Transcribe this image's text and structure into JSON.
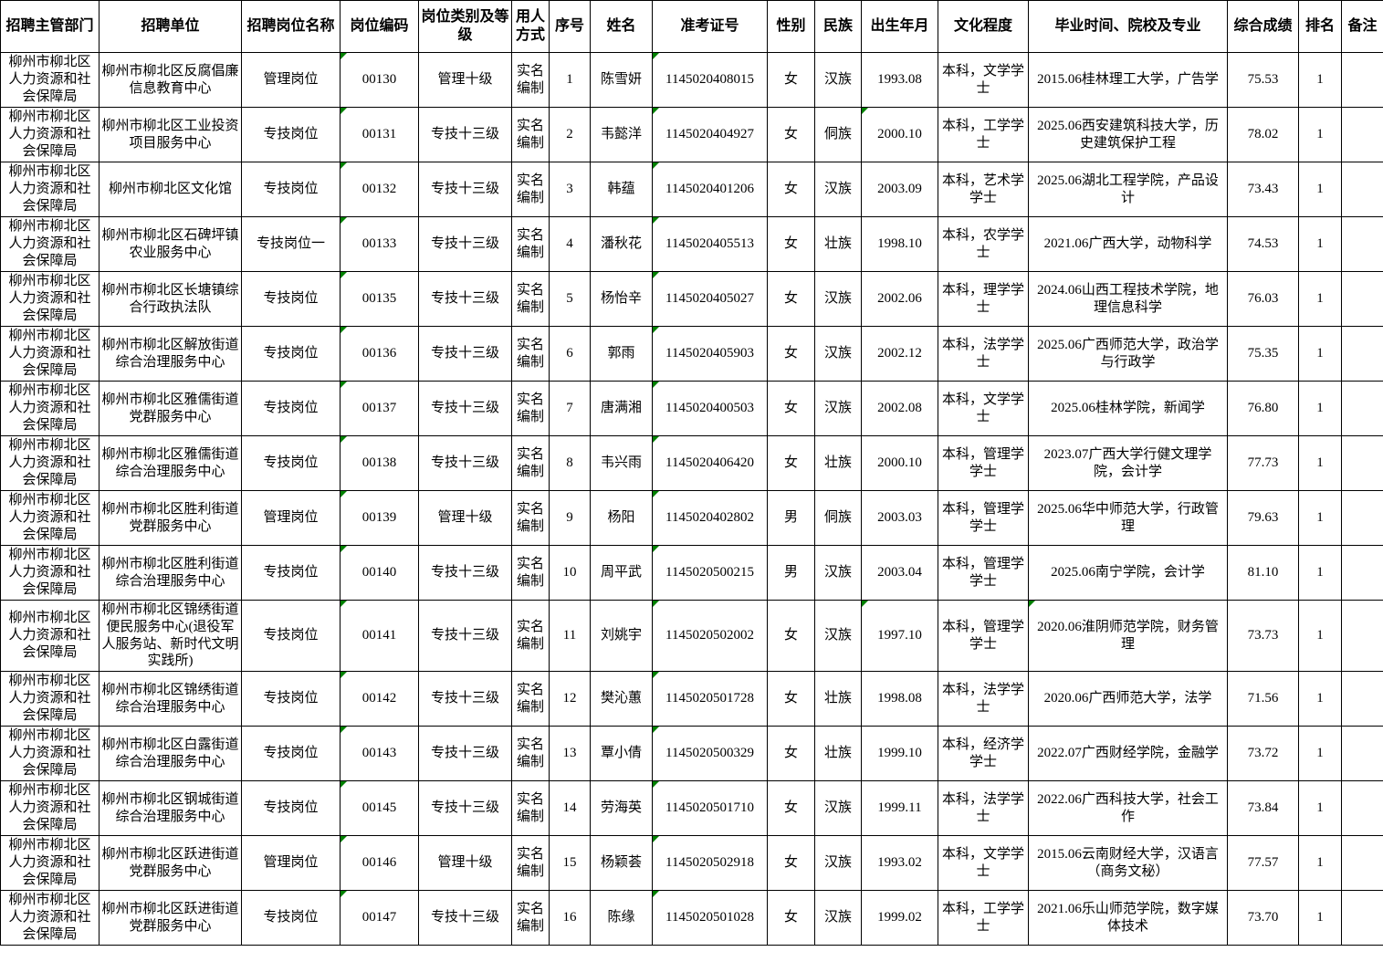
{
  "colors": {
    "grid_border": "#000000",
    "background": "#ffffff",
    "text": "#000000",
    "error_triangle_green": "#008000"
  },
  "table": {
    "columns": [
      {
        "key": "dept",
        "label": "招聘主管部门"
      },
      {
        "key": "unit",
        "label": "招聘单位"
      },
      {
        "key": "post_name",
        "label": "招聘岗位名称"
      },
      {
        "key": "post_code",
        "label": "岗位编码"
      },
      {
        "key": "post_level",
        "label": "岗位类别及等级"
      },
      {
        "key": "hire_type",
        "label": "用人方式"
      },
      {
        "key": "seq",
        "label": "序号"
      },
      {
        "key": "name",
        "label": "姓名"
      },
      {
        "key": "exam_no",
        "label": "准考证号"
      },
      {
        "key": "gender",
        "label": "性别"
      },
      {
        "key": "ethnic",
        "label": "民族"
      },
      {
        "key": "birth",
        "label": "出生年月"
      },
      {
        "key": "education",
        "label": "文化程度"
      },
      {
        "key": "graduation",
        "label": "毕业时间、院校及专业"
      },
      {
        "key": "score",
        "label": "综合成绩"
      },
      {
        "key": "rank",
        "label": "排名"
      },
      {
        "key": "note",
        "label": "备注"
      }
    ],
    "rows": [
      [
        "柳州市柳北区人力资源和社会保障局",
        "柳州市柳北区反腐倡廉信息教育中心",
        "管理岗位",
        "00130",
        "管理十级",
        "实名编制",
        "1",
        "陈雪妍",
        "1145020408015",
        "女",
        "汉族",
        "1993.08",
        "本科，文学学士",
        "2015.06桂林理工大学，广告学",
        "75.53",
        "1",
        ""
      ],
      [
        "柳州市柳北区人力资源和社会保障局",
        "柳州市柳北区工业投资项目服务中心",
        "专技岗位",
        "00131",
        "专技十三级",
        "实名编制",
        "2",
        "韦懿洋",
        "1145020404927",
        "女",
        "侗族",
        "2000.10",
        "本科，工学学士",
        "2025.06西安建筑科技大学，历史建筑保护工程",
        "78.02",
        "1",
        ""
      ],
      [
        "柳州市柳北区人力资源和社会保障局",
        "柳州市柳北区文化馆",
        "专技岗位",
        "00132",
        "专技十三级",
        "实名编制",
        "3",
        "韩蕴",
        "1145020401206",
        "女",
        "汉族",
        "2003.09",
        "本科，艺术学学士",
        "2025.06湖北工程学院，产品设计",
        "73.43",
        "1",
        ""
      ],
      [
        "柳州市柳北区人力资源和社会保障局",
        "柳州市柳北区石碑坪镇农业服务中心",
        "专技岗位一",
        "00133",
        "专技十三级",
        "实名编制",
        "4",
        "潘秋花",
        "1145020405513",
        "女",
        "壮族",
        "1998.10",
        "本科，农学学士",
        "2021.06广西大学，动物科学",
        "74.53",
        "1",
        ""
      ],
      [
        "柳州市柳北区人力资源和社会保障局",
        "柳州市柳北区长塘镇综合行政执法队",
        "专技岗位",
        "00135",
        "专技十三级",
        "实名编制",
        "5",
        "杨怡辛",
        "1145020405027",
        "女",
        "汉族",
        "2002.06",
        "本科，理学学士",
        "2024.06山西工程技术学院，地理信息科学",
        "76.03",
        "1",
        ""
      ],
      [
        "柳州市柳北区人力资源和社会保障局",
        "柳州市柳北区解放街道综合治理服务中心",
        "专技岗位",
        "00136",
        "专技十三级",
        "实名编制",
        "6",
        "郭雨",
        "1145020405903",
        "女",
        "汉族",
        "2002.12",
        "本科，法学学士",
        "2025.06广西师范大学，政治学与行政学",
        "75.35",
        "1",
        ""
      ],
      [
        "柳州市柳北区人力资源和社会保障局",
        "柳州市柳北区雅儒街道党群服务中心",
        "专技岗位",
        "00137",
        "专技十三级",
        "实名编制",
        "7",
        "唐满湘",
        "1145020400503",
        "女",
        "汉族",
        "2002.08",
        "本科，文学学士",
        "2025.06桂林学院，新闻学",
        "76.80",
        "1",
        ""
      ],
      [
        "柳州市柳北区人力资源和社会保障局",
        "柳州市柳北区雅儒街道综合治理服务中心",
        "专技岗位",
        "00138",
        "专技十三级",
        "实名编制",
        "8",
        "韦兴雨",
        "1145020406420",
        "女",
        "壮族",
        "2000.10",
        "本科，管理学学士",
        "2023.07广西大学行健文理学院，会计学",
        "77.73",
        "1",
        ""
      ],
      [
        "柳州市柳北区人力资源和社会保障局",
        "柳州市柳北区胜利街道党群服务中心",
        "管理岗位",
        "00139",
        "管理十级",
        "实名编制",
        "9",
        "杨阳",
        "1145020402802",
        "男",
        "侗族",
        "2003.03",
        "本科，管理学学士",
        "2025.06华中师范大学，行政管理",
        "79.63",
        "1",
        ""
      ],
      [
        "柳州市柳北区人力资源和社会保障局",
        "柳州市柳北区胜利街道综合治理服务中心",
        "专技岗位",
        "00140",
        "专技十三级",
        "实名编制",
        "10",
        "周平武",
        "1145020500215",
        "男",
        "汉族",
        "2003.04",
        "本科，管理学学士",
        "2025.06南宁学院，会计学",
        "81.10",
        "1",
        ""
      ],
      [
        "柳州市柳北区人力资源和社会保障局",
        "柳州市柳北区锦绣街道便民服务中心(退役军人服务站、新时代文明实践所)",
        "专技岗位",
        "00141",
        "专技十三级",
        "实名编制",
        "11",
        "刘姚宇",
        "1145020502002",
        "女",
        "汉族",
        "1997.10",
        "本科，管理学学士",
        "2020.06淮阴师范学院，财务管理",
        "73.73",
        "1",
        ""
      ],
      [
        "柳州市柳北区人力资源和社会保障局",
        "柳州市柳北区锦绣街道综合治理服务中心",
        "专技岗位",
        "00142",
        "专技十三级",
        "实名编制",
        "12",
        "樊沁蕙",
        "1145020501728",
        "女",
        "壮族",
        "1998.08",
        "本科，法学学士",
        "2020.06广西师范大学，法学",
        "71.56",
        "1",
        ""
      ],
      [
        "柳州市柳北区人力资源和社会保障局",
        "柳州市柳北区白露街道综合治理服务中心",
        "专技岗位",
        "00143",
        "专技十三级",
        "实名编制",
        "13",
        "覃小倩",
        "1145020500329",
        "女",
        "壮族",
        "1999.10",
        "本科，经济学学士",
        "2022.07广西财经学院，金融学",
        "73.72",
        "1",
        ""
      ],
      [
        "柳州市柳北区人力资源和社会保障局",
        "柳州市柳北区钢城街道综合治理服务中心",
        "专技岗位",
        "00145",
        "专技十三级",
        "实名编制",
        "14",
        "劳海英",
        "1145020501710",
        "女",
        "汉族",
        "1999.11",
        "本科，法学学士",
        "2022.06广西科技大学，社会工作",
        "73.84",
        "1",
        ""
      ],
      [
        "柳州市柳北区人力资源和社会保障局",
        "柳州市柳北区跃进街道党群服务中心",
        "管理岗位",
        "00146",
        "管理十级",
        "实名编制",
        "15",
        "杨颖荟",
        "1145020502918",
        "女",
        "汉族",
        "1993.02",
        "本科，文学学士",
        "2015.06云南财经大学，汉语言（商务文秘）",
        "77.57",
        "1",
        ""
      ],
      [
        "柳州市柳北区人力资源和社会保障局",
        "柳州市柳北区跃进街道党群服务中心",
        "专技岗位",
        "00147",
        "专技十三级",
        "实名编制",
        "16",
        "陈缘",
        "1145020501028",
        "女",
        "汉族",
        "1999.02",
        "本科，工学学士",
        "2021.06乐山师范学院，数字媒体技术",
        "73.70",
        "1",
        ""
      ]
    ],
    "green_triangles": {
      "columns_all_rows": [
        "post_code",
        "exam_no"
      ],
      "extra_cells": [
        {
          "row": 1,
          "col": "birth"
        },
        {
          "row": 10,
          "col": "birth"
        },
        {
          "row": 10,
          "col": "graduation"
        }
      ]
    }
  }
}
